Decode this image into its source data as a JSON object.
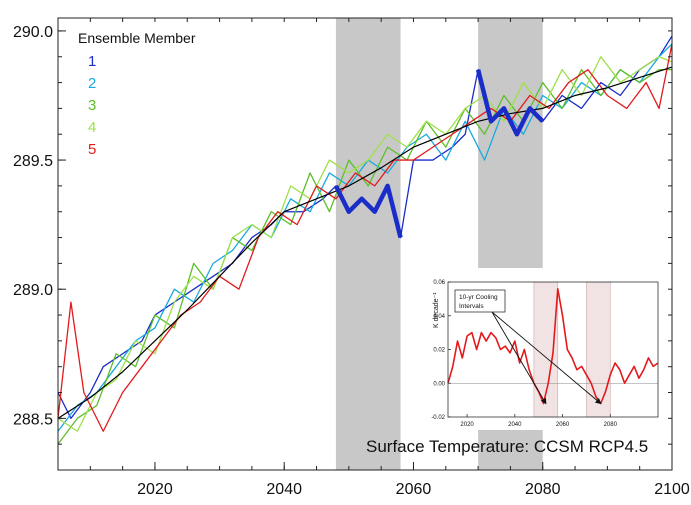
{
  "chart_data": [
    {
      "type": "line",
      "title": "",
      "caption": "Surface Temperature:  CCSM RCP4.5",
      "xlabel": "",
      "ylabel": "",
      "xlim": [
        2005,
        2100
      ],
      "ylim": [
        288.3,
        290.05
      ],
      "x_ticks": [
        2020,
        2040,
        2060,
        2080,
        2100
      ],
      "y_ticks": [
        288.5,
        289.0,
        289.5,
        290.0
      ],
      "x_tick_labels": [
        "2020",
        "2040",
        "2060",
        "2080",
        "2100"
      ],
      "y_tick_labels": [
        "288.5",
        "289.0",
        "289.5",
        "290.0"
      ],
      "legend": {
        "title": "Ensemble Member",
        "placement": "top-left",
        "entries": [
          {
            "label": "1",
            "color": "#1a2dc8"
          },
          {
            "label": "2",
            "color": "#19a9e0"
          },
          {
            "label": "3",
            "color": "#5cbf2a"
          },
          {
            "label": "4",
            "color": "#9ee04a"
          },
          {
            "label": "5",
            "color": "#e31a1c"
          }
        ]
      },
      "shaded_intervals": [
        [
          2048,
          2058
        ],
        [
          2070,
          2080
        ]
      ],
      "highlighted_segments": [
        {
          "member": "1",
          "x": [
            2048,
            2058
          ]
        },
        {
          "member": "1",
          "x": [
            2070,
            2080
          ]
        }
      ],
      "series": [
        {
          "name": "1",
          "color": "#1a2dc8",
          "x": [
            2005,
            2007,
            2010,
            2012,
            2015,
            2018,
            2020,
            2023,
            2026,
            2029,
            2032,
            2035,
            2038,
            2040,
            2043,
            2046,
            2048,
            2050,
            2052,
            2054,
            2056,
            2058,
            2060,
            2063,
            2066,
            2068,
            2070,
            2072,
            2074,
            2076,
            2078,
            2080,
            2083,
            2086,
            2089,
            2092,
            2095,
            2098,
            2100
          ],
          "y": [
            288.6,
            288.5,
            288.6,
            288.7,
            288.75,
            288.8,
            288.9,
            288.95,
            289.0,
            289.05,
            289.1,
            289.2,
            289.25,
            289.3,
            289.3,
            289.35,
            289.4,
            289.3,
            289.35,
            289.3,
            289.4,
            289.2,
            289.5,
            289.5,
            289.55,
            289.6,
            289.85,
            289.65,
            289.7,
            289.6,
            289.7,
            289.65,
            289.75,
            289.7,
            289.8,
            289.75,
            289.85,
            289.9,
            289.98
          ]
        },
        {
          "name": "2",
          "color": "#19a9e0",
          "x": [
            2005,
            2008,
            2011,
            2014,
            2017,
            2020,
            2023,
            2026,
            2029,
            2032,
            2035,
            2038,
            2041,
            2044,
            2047,
            2050,
            2053,
            2056,
            2059,
            2062,
            2065,
            2068,
            2071,
            2074,
            2077,
            2080,
            2083,
            2086,
            2089,
            2092,
            2095,
            2098,
            2100
          ],
          "y": [
            288.45,
            288.55,
            288.6,
            288.7,
            288.8,
            288.85,
            289.0,
            288.95,
            289.1,
            289.15,
            289.25,
            289.2,
            289.35,
            289.3,
            289.45,
            289.4,
            289.5,
            289.45,
            289.55,
            289.6,
            289.5,
            289.65,
            289.5,
            289.7,
            289.6,
            289.75,
            289.7,
            289.8,
            289.75,
            289.85,
            289.8,
            289.9,
            289.95
          ]
        },
        {
          "name": "3",
          "color": "#5cbf2a",
          "x": [
            2005,
            2008,
            2011,
            2014,
            2017,
            2020,
            2023,
            2026,
            2029,
            2032,
            2035,
            2038,
            2041,
            2044,
            2047,
            2050,
            2053,
            2056,
            2059,
            2062,
            2065,
            2068,
            2071,
            2074,
            2077,
            2080,
            2083,
            2086,
            2089,
            2092,
            2095,
            2098,
            2100
          ],
          "y": [
            288.4,
            288.5,
            288.55,
            288.75,
            288.7,
            288.9,
            288.85,
            289.1,
            289.0,
            289.2,
            289.15,
            289.3,
            289.25,
            289.45,
            289.3,
            289.5,
            289.4,
            289.55,
            289.5,
            289.65,
            289.55,
            289.7,
            289.6,
            289.75,
            289.65,
            289.8,
            289.7,
            289.85,
            289.75,
            289.85,
            289.8,
            289.85,
            289.85
          ]
        },
        {
          "name": "4",
          "color": "#9ee04a",
          "x": [
            2005,
            2008,
            2011,
            2014,
            2017,
            2020,
            2023,
            2026,
            2029,
            2032,
            2035,
            2038,
            2041,
            2044,
            2047,
            2050,
            2053,
            2056,
            2059,
            2062,
            2065,
            2068,
            2071,
            2074,
            2077,
            2080,
            2083,
            2086,
            2089,
            2092,
            2095,
            2098,
            2100
          ],
          "y": [
            288.5,
            288.45,
            288.6,
            288.65,
            288.8,
            288.75,
            288.95,
            289.05,
            289.0,
            289.2,
            289.25,
            289.2,
            289.4,
            289.35,
            289.5,
            289.45,
            289.5,
            289.6,
            289.55,
            289.65,
            289.6,
            289.7,
            289.75,
            289.65,
            289.8,
            289.7,
            289.85,
            289.75,
            289.9,
            289.8,
            289.85,
            289.9,
            289.88
          ]
        },
        {
          "name": "5",
          "color": "#e31a1c",
          "x": [
            2005,
            2007,
            2009,
            2012,
            2015,
            2018,
            2021,
            2024,
            2027,
            2030,
            2033,
            2036,
            2039,
            2042,
            2045,
            2048,
            2051,
            2054,
            2057,
            2060,
            2063,
            2066,
            2069,
            2072,
            2075,
            2078,
            2081,
            2084,
            2087,
            2090,
            2093,
            2096,
            2098,
            2100
          ],
          "y": [
            288.5,
            288.95,
            288.6,
            288.45,
            288.6,
            288.7,
            288.8,
            288.9,
            288.95,
            289.05,
            289.0,
            289.2,
            289.3,
            289.25,
            289.4,
            289.35,
            289.45,
            289.4,
            289.5,
            289.5,
            289.55,
            289.6,
            289.65,
            289.7,
            289.65,
            289.75,
            289.7,
            289.8,
            289.85,
            289.75,
            289.7,
            289.8,
            289.7,
            289.95
          ]
        },
        {
          "name": "",
          "color": "#000000",
          "x": [
            2005,
            2010,
            2015,
            2020,
            2025,
            2030,
            2035,
            2040,
            2045,
            2050,
            2055,
            2060,
            2065,
            2070,
            2075,
            2080,
            2085,
            2090,
            2095,
            2100
          ],
          "y": [
            288.5,
            288.58,
            288.68,
            288.8,
            288.92,
            289.05,
            289.18,
            289.3,
            289.35,
            289.4,
            289.47,
            289.55,
            289.6,
            289.65,
            289.68,
            289.7,
            289.75,
            289.78,
            289.82,
            289.86
          ]
        }
      ]
    },
    {
      "type": "line",
      "title": "",
      "xlabel": "",
      "ylabel": "K decade⁻¹",
      "xlim": [
        2012,
        2100
      ],
      "ylim": [
        -0.02,
        0.06
      ],
      "x_ticks": [
        2020,
        2040,
        2060,
        2080
      ],
      "y_ticks": [
        -0.02,
        0.0,
        0.02,
        0.04,
        0.06
      ],
      "x_tick_labels": [
        "2020",
        "2040",
        "2060",
        "2080"
      ],
      "y_tick_labels": [
        "-0.02",
        "0.00",
        "0.02",
        "0.04",
        "0.06"
      ],
      "shaded_intervals": [
        [
          2048,
          2058
        ],
        [
          2070,
          2080
        ]
      ],
      "annotation": {
        "label_lines": [
          "10-yr Cooling",
          "Intervals"
        ],
        "arrow_targets": [
          [
            2053,
            -0.012
          ],
          [
            2076,
            -0.012
          ]
        ]
      },
      "series": [
        {
          "name": "",
          "color": "#e31a1c",
          "x": [
            2012,
            2014,
            2016,
            2018,
            2020,
            2022,
            2024,
            2026,
            2028,
            2030,
            2032,
            2034,
            2036,
            2038,
            2040,
            2042,
            2044,
            2046,
            2048,
            2050,
            2052,
            2054,
            2056,
            2058,
            2060,
            2062,
            2064,
            2066,
            2068,
            2070,
            2072,
            2074,
            2076,
            2078,
            2080,
            2082,
            2084,
            2086,
            2088,
            2090,
            2092,
            2094,
            2096,
            2098,
            2100
          ],
          "y": [
            0.0,
            0.01,
            0.025,
            0.015,
            0.028,
            0.03,
            0.02,
            0.03,
            0.025,
            0.03,
            0.027,
            0.02,
            0.022,
            0.018,
            0.025,
            0.012,
            0.02,
            0.008,
            0.0,
            -0.005,
            -0.012,
            0.0,
            0.018,
            0.056,
            0.04,
            0.02,
            0.015,
            0.008,
            0.01,
            0.005,
            0.0,
            -0.008,
            -0.012,
            -0.005,
            0.005,
            0.012,
            0.008,
            0.0,
            0.005,
            0.01,
            0.003,
            0.008,
            0.015,
            0.01,
            0.012
          ]
        }
      ]
    }
  ]
}
